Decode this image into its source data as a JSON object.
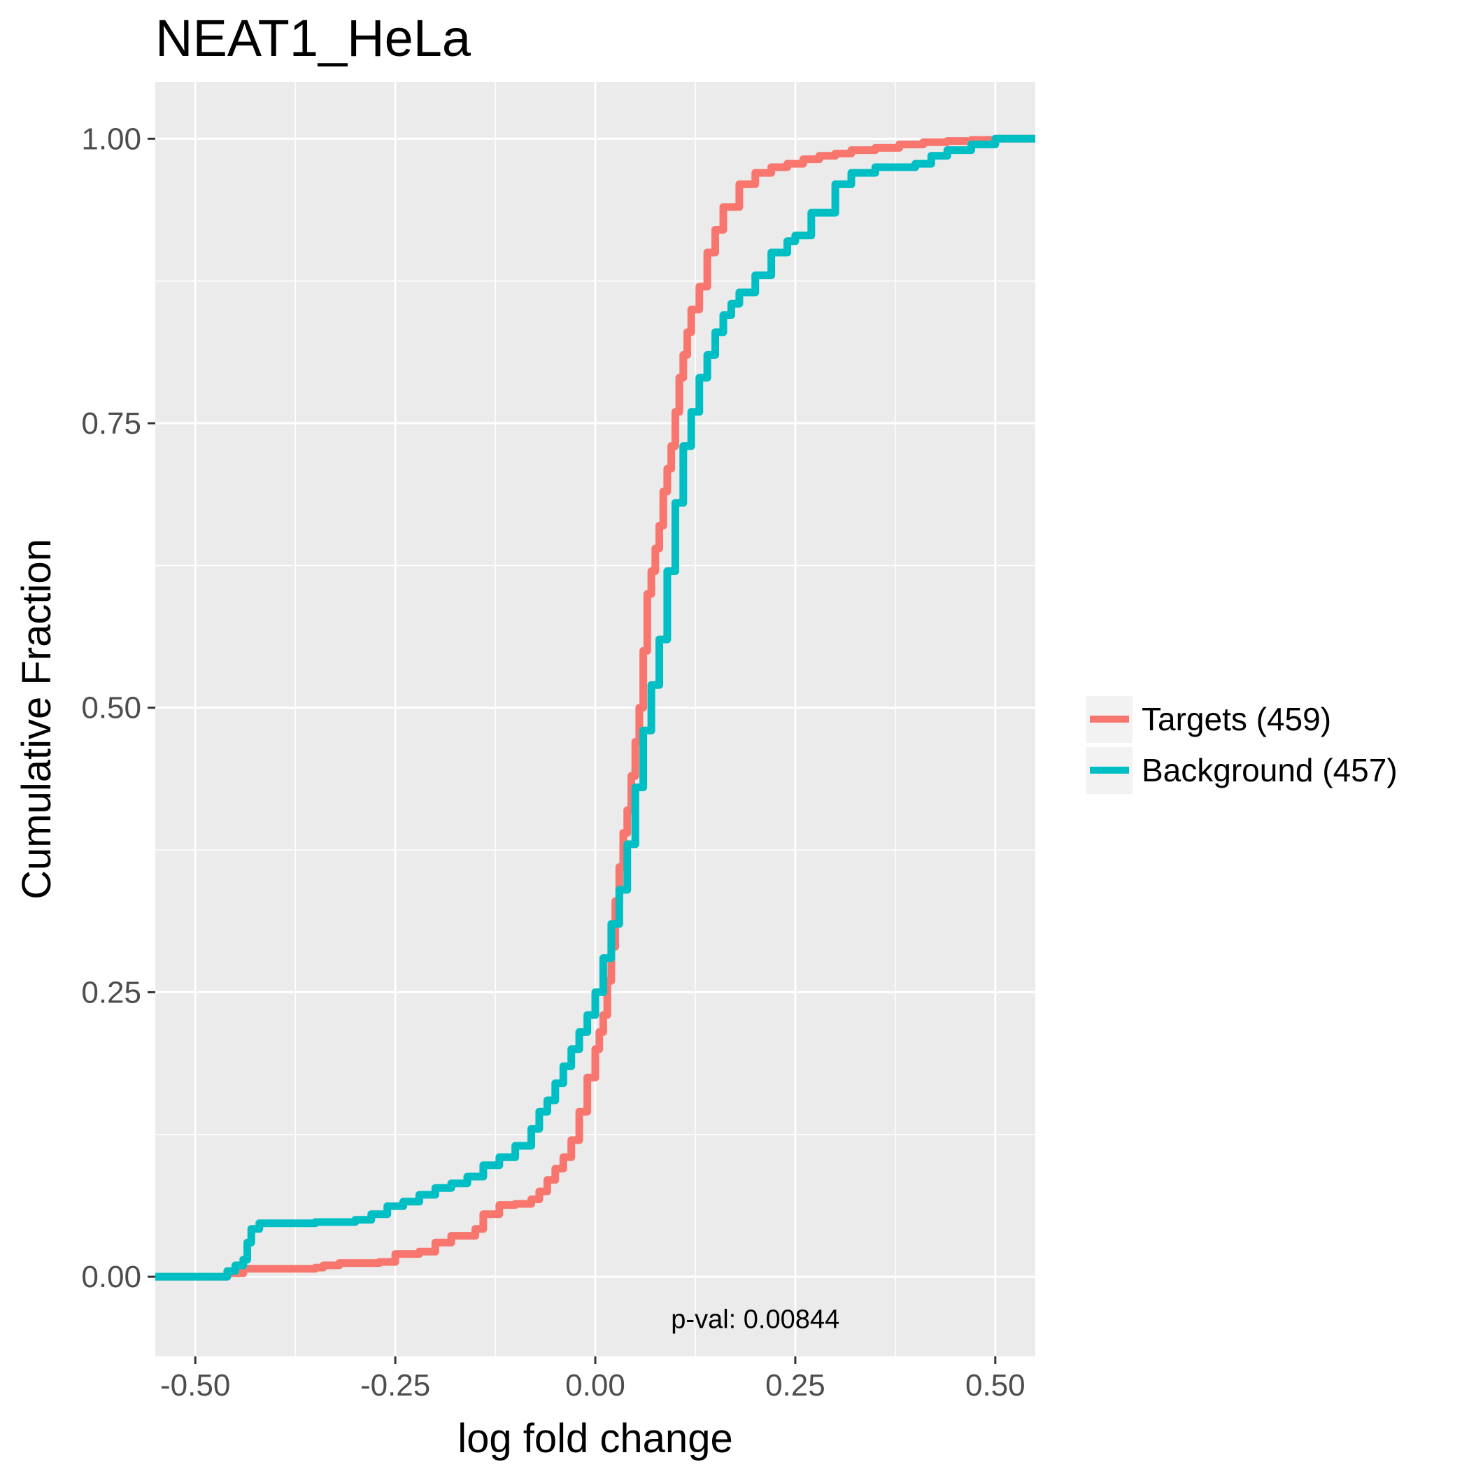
{
  "chart_data": {
    "type": "line",
    "title": "NEAT1_HeLa",
    "xlabel": "log fold change",
    "ylabel": "Cumulative Fraction",
    "xlim": [
      -0.55,
      0.55
    ],
    "ylim": [
      -0.07,
      1.05
    ],
    "x_ticks": [
      -0.5,
      -0.25,
      0,
      0.25,
      0.5
    ],
    "x_tick_labels": [
      "-0.50",
      "-0.25",
      "0.00",
      "0.25",
      "0.50"
    ],
    "y_ticks": [
      0,
      0.25,
      0.5,
      0.75,
      1
    ],
    "y_tick_labels": [
      "0.00",
      "0.25",
      "0.50",
      "0.75",
      "1.00"
    ],
    "grid": true,
    "legend_position": "right",
    "annotation": "p-val:  0.00844",
    "series": [
      {
        "name": "Targets (459)",
        "color": "#F8766D",
        "x": [
          -0.55,
          -0.5,
          -0.48,
          -0.46,
          -0.44,
          -0.42,
          -0.35,
          -0.34,
          -0.32,
          -0.27,
          -0.25,
          -0.22,
          -0.2,
          -0.18,
          -0.15,
          -0.14,
          -0.12,
          -0.1,
          -0.08,
          -0.07,
          -0.06,
          -0.05,
          -0.04,
          -0.03,
          -0.02,
          -0.01,
          0,
          0.005,
          0.01,
          0.015,
          0.02,
          0.025,
          0.03,
          0.035,
          0.04,
          0.045,
          0.05,
          0.055,
          0.06,
          0.065,
          0.07,
          0.075,
          0.08,
          0.085,
          0.09,
          0.095,
          0.1,
          0.105,
          0.11,
          0.115,
          0.12,
          0.13,
          0.14,
          0.15,
          0.16,
          0.18,
          0.2,
          0.22,
          0.24,
          0.26,
          0.28,
          0.3,
          0.32,
          0.35,
          0.38,
          0.41,
          0.44,
          0.47,
          0.5,
          0.55
        ],
        "y": [
          0,
          0,
          0,
          0.003,
          0.007,
          0.007,
          0.008,
          0.01,
          0.012,
          0.013,
          0.02,
          0.022,
          0.03,
          0.036,
          0.042,
          0.055,
          0.063,
          0.064,
          0.068,
          0.075,
          0.085,
          0.095,
          0.105,
          0.12,
          0.145,
          0.175,
          0.2,
          0.215,
          0.23,
          0.26,
          0.29,
          0.33,
          0.36,
          0.39,
          0.41,
          0.44,
          0.47,
          0.5,
          0.55,
          0.6,
          0.62,
          0.64,
          0.66,
          0.69,
          0.71,
          0.73,
          0.76,
          0.79,
          0.81,
          0.83,
          0.85,
          0.87,
          0.9,
          0.92,
          0.94,
          0.96,
          0.97,
          0.975,
          0.978,
          0.982,
          0.985,
          0.987,
          0.99,
          0.992,
          0.995,
          0.997,
          0.998,
          0.999,
          1,
          1
        ]
      },
      {
        "name": "Background (457)",
        "color": "#00BFC4",
        "x": [
          -0.55,
          -0.48,
          -0.46,
          -0.45,
          -0.44,
          -0.435,
          -0.43,
          -0.42,
          -0.35,
          -0.3,
          -0.28,
          -0.26,
          -0.24,
          -0.22,
          -0.2,
          -0.18,
          -0.16,
          -0.14,
          -0.12,
          -0.1,
          -0.08,
          -0.07,
          -0.06,
          -0.05,
          -0.04,
          -0.03,
          -0.02,
          -0.01,
          0,
          0.01,
          0.02,
          0.03,
          0.04,
          0.05,
          0.06,
          0.07,
          0.08,
          0.09,
          0.1,
          0.11,
          0.12,
          0.13,
          0.14,
          0.15,
          0.16,
          0.17,
          0.18,
          0.2,
          0.22,
          0.24,
          0.25,
          0.27,
          0.3,
          0.32,
          0.35,
          0.38,
          0.4,
          0.42,
          0.44,
          0.47,
          0.5,
          0.55
        ],
        "y": [
          0,
          0,
          0.005,
          0.01,
          0.015,
          0.03,
          0.042,
          0.047,
          0.048,
          0.05,
          0.055,
          0.062,
          0.066,
          0.072,
          0.078,
          0.082,
          0.088,
          0.098,
          0.105,
          0.115,
          0.13,
          0.145,
          0.155,
          0.17,
          0.185,
          0.2,
          0.215,
          0.23,
          0.25,
          0.28,
          0.31,
          0.34,
          0.38,
          0.43,
          0.48,
          0.52,
          0.56,
          0.62,
          0.68,
          0.73,
          0.76,
          0.79,
          0.81,
          0.83,
          0.845,
          0.855,
          0.865,
          0.88,
          0.9,
          0.91,
          0.915,
          0.935,
          0.96,
          0.97,
          0.975,
          0.975,
          0.978,
          0.985,
          0.99,
          0.995,
          1,
          1
        ]
      }
    ]
  }
}
